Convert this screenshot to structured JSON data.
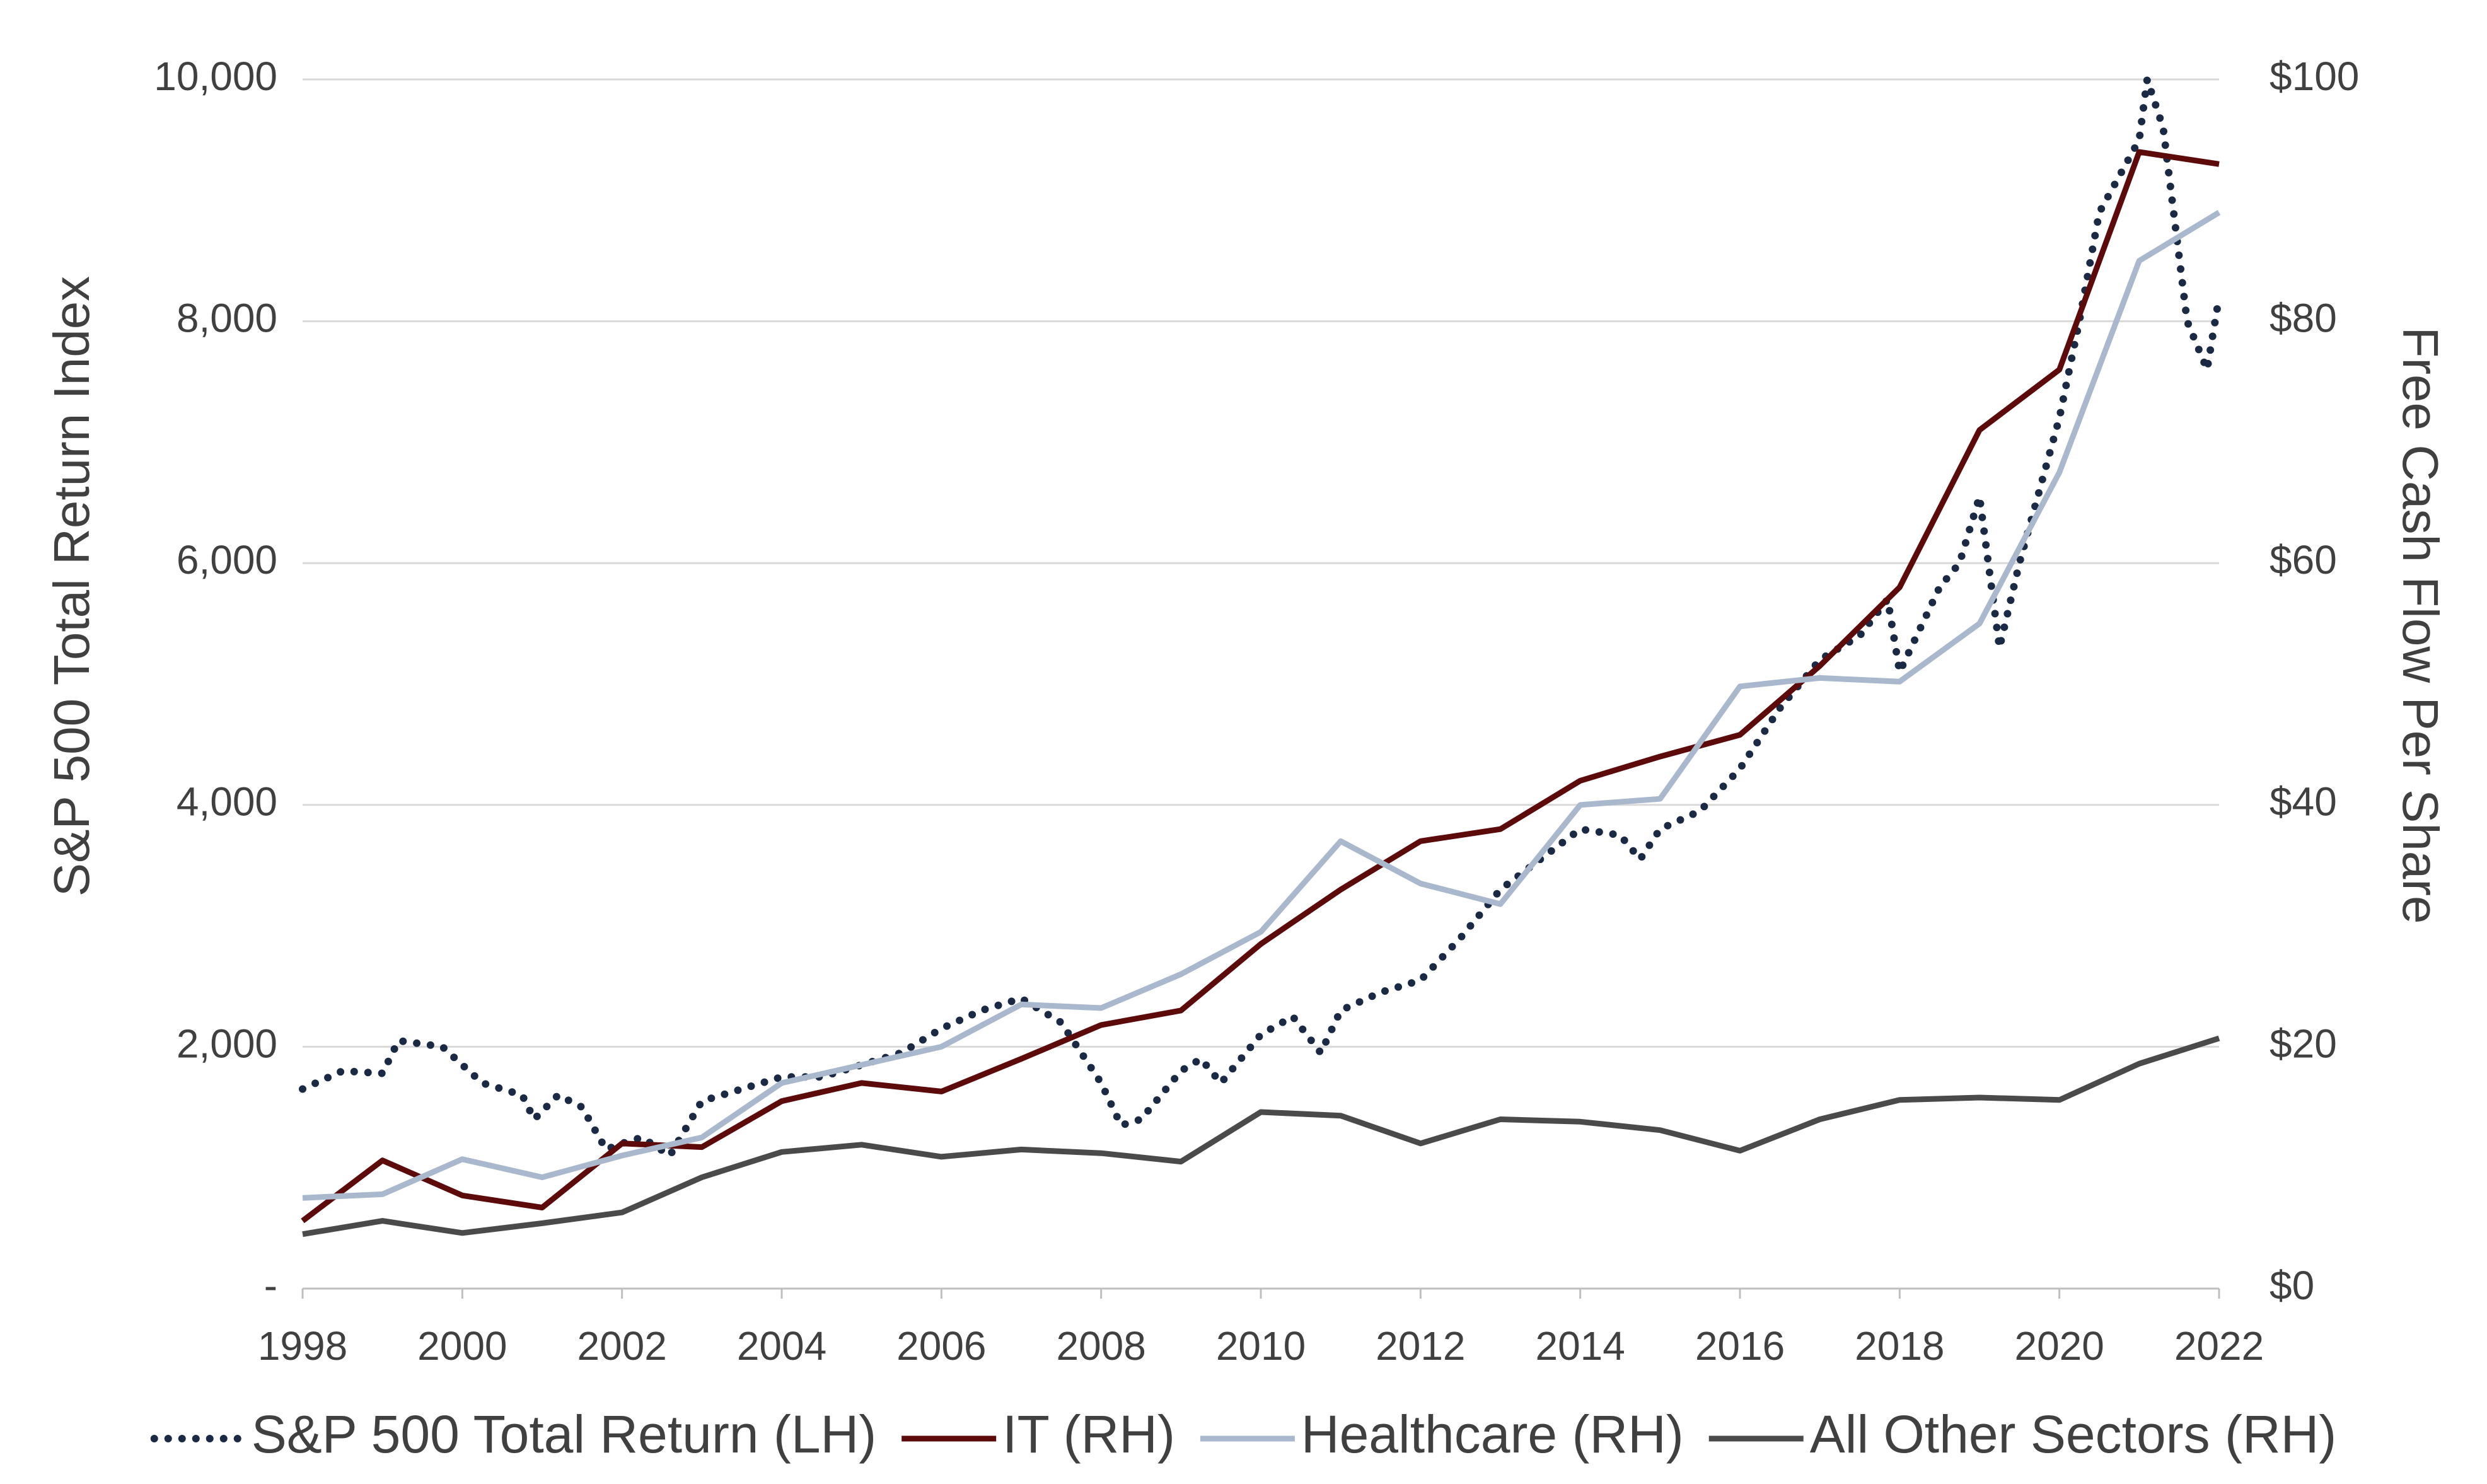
{
  "chart_data": {
    "type": "line",
    "y_label": "S&P 500 Total Return Index",
    "y2_label": "Free Cash Flow Per Share",
    "x": [
      1998,
      1999,
      2000,
      2001,
      2002,
      2003,
      2004,
      2005,
      2006,
      2007,
      2008,
      2009,
      2010,
      2011,
      2012,
      2013,
      2014,
      2015,
      2016,
      2017,
      2018,
      2019,
      2020,
      2021,
      2022
    ],
    "xlim": [
      1998,
      2022
    ],
    "xticks": [
      1998,
      2000,
      2002,
      2004,
      2006,
      2008,
      2010,
      2012,
      2014,
      2016,
      2018,
      2020,
      2022
    ],
    "ylim": [
      0,
      10000
    ],
    "yticks": [
      {
        "value": 0,
        "label": "-"
      },
      {
        "value": 2000,
        "label": "2,000"
      },
      {
        "value": 4000,
        "label": "4,000"
      },
      {
        "value": 6000,
        "label": "6,000"
      },
      {
        "value": 8000,
        "label": "8,000"
      },
      {
        "value": 10000,
        "label": "10,000"
      }
    ],
    "y2lim": [
      0,
      100
    ],
    "y2ticks": [
      {
        "value": 0,
        "label": "$0"
      },
      {
        "value": 20,
        "label": "$20"
      },
      {
        "value": 40,
        "label": "$40"
      },
      {
        "value": 60,
        "label": "$60"
      },
      {
        "value": 80,
        "label": "$80"
      },
      {
        "value": 100,
        "label": "$100"
      }
    ],
    "grid": true,
    "legend": "bottom",
    "series": [
      {
        "name": "S&P 500 Total Return (LH)",
        "color": "#1a2a44",
        "style": "dotted",
        "x": [
          1998,
          1998.5,
          1999,
          1999.2,
          1999.75,
          2000,
          2000.25,
          2000.75,
          2000.9,
          2001.2,
          2001.5,
          2001.8,
          2002,
          2002.25,
          2002.6,
          2003,
          2003.5,
          2004,
          2004.5,
          2005,
          2005.5,
          2006,
          2006.5,
          2007,
          2007.5,
          2008,
          2008.25,
          2008.5,
          2009,
          2009.25,
          2009.5,
          2010,
          2010.4,
          2010.75,
          2011,
          2011.5,
          2012,
          2012.5,
          2013,
          2013.5,
          2014,
          2014.5,
          2014.75,
          2015,
          2015.5,
          2016,
          2016.5,
          2017,
          2017.5,
          2017.85,
          2018,
          2018.5,
          2018.75,
          2019,
          2019.25,
          2019.5,
          2020,
          2020.25,
          2020.5,
          2020.75,
          2021,
          2021.1,
          2021.3,
          2021.6,
          2021.85,
          2022
        ],
        "values": [
          1650,
          1800,
          1780,
          2050,
          2000,
          1850,
          1700,
          1600,
          1400,
          1600,
          1500,
          1150,
          1200,
          1250,
          1100,
          1550,
          1650,
          1750,
          1750,
          1850,
          1950,
          2150,
          2300,
          2400,
          2200,
          1700,
          1350,
          1400,
          1800,
          1900,
          1700,
          2100,
          2250,
          1950,
          2300,
          2450,
          2550,
          2900,
          3300,
          3550,
          3800,
          3750,
          3550,
          3800,
          3950,
          4300,
          4800,
          5200,
          5400,
          5700,
          5100,
          5800,
          6000,
          6550,
          5300,
          6000,
          7200,
          8000,
          8900,
          9200,
          9500,
          10000,
          9600,
          8000,
          7600,
          8200
        ]
      },
      {
        "name": "IT (RH)",
        "color": "#5c0a0a",
        "axis": "y2",
        "values": [
          5.6,
          10.6,
          7.7,
          6.7,
          12,
          11.7,
          15.5,
          17,
          16.3,
          19,
          21.8,
          23,
          28.5,
          33,
          37,
          38,
          42,
          44,
          45.8,
          51.5,
          58,
          71,
          76,
          94,
          93
        ]
      },
      {
        "name": "Healthcare (RH)",
        "color": "#a9b8cc",
        "axis": "y2",
        "values": [
          7.5,
          7.8,
          10.7,
          9.2,
          11,
          12.5,
          17,
          18.5,
          20,
          23.5,
          23.2,
          26,
          29.5,
          37,
          33.5,
          31.8,
          40,
          40.5,
          49.8,
          50.5,
          50.2,
          55,
          67.5,
          85,
          89
        ]
      },
      {
        "name": "All Other Sectors (RH)",
        "color": "#4a4a4a",
        "axis": "y2",
        "values": [
          4.5,
          5.6,
          4.6,
          5.4,
          6.3,
          9.2,
          11.3,
          11.9,
          10.9,
          11.5,
          11.2,
          10.5,
          14.6,
          14.3,
          12,
          14,
          13.8,
          13.1,
          11.4,
          14,
          15.6,
          15.8,
          15.6,
          18.6,
          20.7
        ]
      }
    ]
  }
}
